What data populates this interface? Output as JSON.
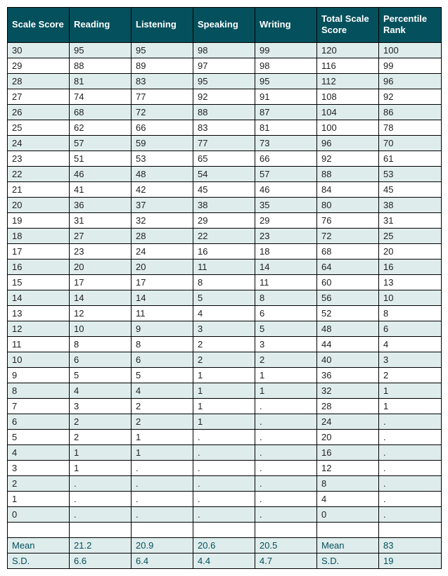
{
  "table": {
    "columns": [
      "Scale Score",
      "Reading",
      "Listening",
      "Speaking",
      "Writing",
      "Total Scale Score",
      "Percentile Rank"
    ],
    "header_bg": "#04505c",
    "header_fg": "#ffffff",
    "stripe_bg": "#dfecec",
    "plain_bg": "#ffffff",
    "border_color": "#000000",
    "font_size_header": 13,
    "font_size_cell": 13,
    "rows": [
      {
        "stripe": true,
        "cells": [
          "30",
          "95",
          "95",
          "98",
          "99",
          "120",
          "100"
        ]
      },
      {
        "stripe": false,
        "cells": [
          "29",
          "88",
          "89",
          "97",
          "98",
          "116",
          "99"
        ]
      },
      {
        "stripe": true,
        "cells": [
          "28",
          "81",
          "83",
          "95",
          "95",
          "112",
          "96"
        ]
      },
      {
        "stripe": false,
        "cells": [
          "27",
          "74",
          "77",
          "92",
          "91",
          "108",
          "92"
        ]
      },
      {
        "stripe": true,
        "cells": [
          "26",
          "68",
          "72",
          "88",
          "87",
          "104",
          "86"
        ]
      },
      {
        "stripe": false,
        "cells": [
          "25",
          "62",
          "66",
          "83",
          "81",
          "100",
          "78"
        ]
      },
      {
        "stripe": true,
        "cells": [
          "24",
          "57",
          "59",
          "77",
          "73",
          "96",
          "70"
        ]
      },
      {
        "stripe": false,
        "cells": [
          "23",
          "51",
          "53",
          "65",
          "66",
          "92",
          "61"
        ]
      },
      {
        "stripe": true,
        "cells": [
          "22",
          "46",
          "48",
          "54",
          "57",
          "88",
          "53"
        ]
      },
      {
        "stripe": false,
        "cells": [
          "21",
          "41",
          "42",
          "45",
          "46",
          "84",
          "45"
        ]
      },
      {
        "stripe": true,
        "cells": [
          "20",
          "36",
          "37",
          "38",
          "35",
          "80",
          "38"
        ]
      },
      {
        "stripe": false,
        "cells": [
          "19",
          "31",
          "32",
          "29",
          "29",
          "76",
          "31"
        ]
      },
      {
        "stripe": true,
        "cells": [
          "18",
          "27",
          "28",
          "22",
          "23",
          "72",
          "25"
        ]
      },
      {
        "stripe": false,
        "cells": [
          "17",
          "23",
          "24",
          "16",
          "18",
          "68",
          "20"
        ]
      },
      {
        "stripe": true,
        "cells": [
          "16",
          "20",
          "20",
          "11",
          "14",
          "64",
          "16"
        ]
      },
      {
        "stripe": false,
        "cells": [
          "15",
          "17",
          "17",
          "8",
          "11",
          "60",
          "13"
        ]
      },
      {
        "stripe": true,
        "cells": [
          "14",
          "14",
          "14",
          "5",
          "8",
          "56",
          "10"
        ]
      },
      {
        "stripe": false,
        "cells": [
          "13",
          "12",
          "11",
          "4",
          "6",
          "52",
          "8"
        ]
      },
      {
        "stripe": true,
        "cells": [
          "12",
          "10",
          "9",
          "3",
          "5",
          "48",
          "6"
        ]
      },
      {
        "stripe": false,
        "cells": [
          "11",
          "8",
          "8",
          "2",
          "3",
          "44",
          "4"
        ]
      },
      {
        "stripe": true,
        "cells": [
          "10",
          "6",
          "6",
          "2",
          "2",
          "40",
          "3"
        ]
      },
      {
        "stripe": false,
        "cells": [
          "9",
          "5",
          "5",
          "1",
          "1",
          "36",
          "2"
        ]
      },
      {
        "stripe": true,
        "cells": [
          "8",
          "4",
          "4",
          "1",
          "1",
          "32",
          "1"
        ]
      },
      {
        "stripe": false,
        "cells": [
          "7",
          "3",
          "2",
          "1",
          ".",
          "28",
          "1"
        ]
      },
      {
        "stripe": true,
        "cells": [
          "6",
          "2",
          "2",
          "1",
          ".",
          "24",
          "."
        ]
      },
      {
        "stripe": false,
        "cells": [
          "5",
          "2",
          "1",
          ".",
          ".",
          "20",
          "."
        ]
      },
      {
        "stripe": true,
        "cells": [
          "4",
          "1",
          "1",
          ".",
          ".",
          "16",
          "."
        ]
      },
      {
        "stripe": false,
        "cells": [
          "3",
          "1",
          ".",
          ".",
          ".",
          "12",
          "."
        ]
      },
      {
        "stripe": true,
        "cells": [
          "2",
          ".",
          ".",
          ".",
          ".",
          "8",
          "."
        ]
      },
      {
        "stripe": false,
        "cells": [
          "1",
          ".",
          ".",
          ".",
          ".",
          "4",
          "."
        ]
      },
      {
        "stripe": true,
        "cells": [
          "0",
          ".",
          ".",
          ".",
          ".",
          "0",
          "."
        ]
      }
    ],
    "blank_row": {
      "cells": [
        "",
        "",
        "",
        "",
        "",
        "",
        ""
      ]
    },
    "summary_rows": [
      {
        "cells": [
          "Mean",
          "21.2",
          "20.9",
          "20.6",
          "20.5",
          "Mean",
          "83"
        ]
      },
      {
        "cells": [
          "S.D.",
          "6.6",
          "6.4",
          "4.4",
          "4.7",
          "S.D.",
          "19"
        ]
      }
    ]
  }
}
